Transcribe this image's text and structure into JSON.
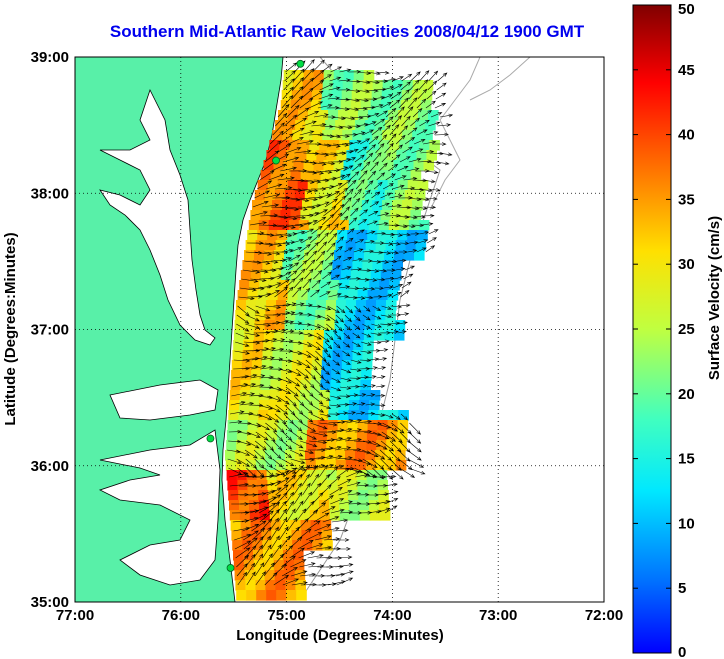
{
  "title": "Southern Mid-Atlantic Raw Velocities 2008/04/12 1900 GMT",
  "colors": {
    "land": "#58f0a8",
    "water": "#ffffff",
    "title": "#0000ee",
    "station": "#00dd44"
  },
  "map": {
    "xlabel": "Longitude (Degrees:Minutes)",
    "ylabel": "Latitude (Degrees:Minutes)",
    "lon_range": [
      -77,
      -72
    ],
    "lat_range": [
      35,
      39
    ],
    "x_ticks": [
      {
        "lon": -77,
        "label": "77:00"
      },
      {
        "lon": -76,
        "label": "76:00"
      },
      {
        "lon": -75,
        "label": "75:00"
      },
      {
        "lon": -74,
        "label": "74:00"
      },
      {
        "lon": -73,
        "label": "73:00"
      },
      {
        "lon": -72,
        "label": "72:00"
      }
    ],
    "y_ticks": [
      {
        "lat": 35,
        "label": "35:00"
      },
      {
        "lat": 36,
        "label": "36:00"
      },
      {
        "lat": 37,
        "label": "37:00"
      },
      {
        "lat": 38,
        "label": "38:00"
      },
      {
        "lat": 39,
        "label": "39:00"
      }
    ],
    "stations": [
      {
        "lon": -74.87,
        "lat": 38.95
      },
      {
        "lon": -75.1,
        "lat": 38.24
      },
      {
        "lon": -75.72,
        "lat": 36.2
      },
      {
        "lon": -75.53,
        "lat": 35.25
      }
    ]
  },
  "colorbar": {
    "label": "Surface Velocity (cm/s)",
    "range": [
      0,
      50
    ],
    "ticks": [
      {
        "value": 0,
        "label": "0"
      },
      {
        "value": 5,
        "label": "5"
      },
      {
        "value": 10,
        "label": "10"
      },
      {
        "value": 15,
        "label": "15"
      },
      {
        "value": 20,
        "label": "20"
      },
      {
        "value": 25,
        "label": "25"
      },
      {
        "value": 30,
        "label": "30"
      },
      {
        "value": 35,
        "label": "35"
      },
      {
        "value": 40,
        "label": "40"
      },
      {
        "value": 45,
        "label": "45"
      },
      {
        "value": 50,
        "label": "50"
      }
    ]
  }
}
